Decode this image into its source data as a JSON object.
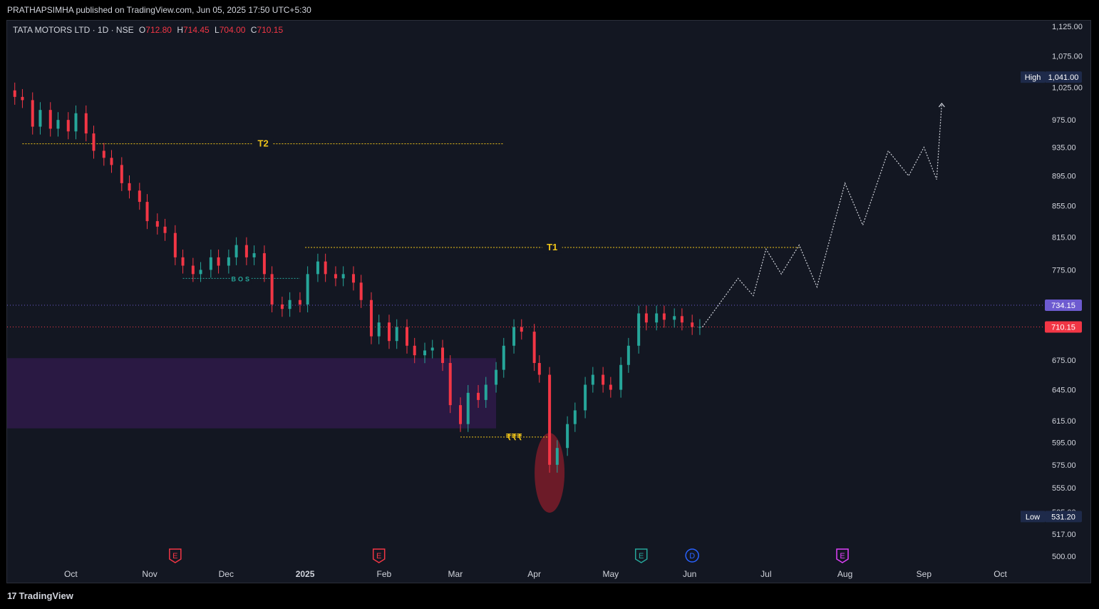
{
  "header": {
    "published": "PRATHAPSIMHA published on TradingView.com, Jun 05, 2025 17:50 UTC+5:30"
  },
  "symbol": {
    "name": "TATA MOTORS LTD · 1D · NSE",
    "open_key": "O",
    "open": "712.80",
    "high_key": "H",
    "high": "714.45",
    "low_key": "L",
    "low": "704.00",
    "close_key": "C",
    "close": "710.15"
  },
  "footer": {
    "logo_text": "TradingView"
  },
  "colors": {
    "bg": "#131722",
    "up": "#26a69a",
    "down": "#f23645",
    "target": "#f0c419",
    "zone": "#2e1a47",
    "ellipse": "#8b1e2b",
    "path": "#d1d4dc"
  },
  "chart_data": {
    "type": "candlestick",
    "y_scale": "log",
    "ylim": [
      495,
      1135
    ],
    "y_ticks": [
      "1,125.00",
      "1,075.00",
      "1,025.00",
      "975.00",
      "935.00",
      "895.00",
      "855.00",
      "815.00",
      "775.00",
      "675.00",
      "645.00",
      "615.00",
      "595.00",
      "575.00",
      "555.00",
      "535.00",
      "517.00",
      "500.00"
    ],
    "x_ticks": [
      {
        "label": "Oct",
        "date": "2024-10-01"
      },
      {
        "label": "Nov",
        "date": "2024-11-01"
      },
      {
        "label": "Dec",
        "date": "2024-12-01"
      },
      {
        "label": "2025",
        "date": "2025-01-01"
      },
      {
        "label": "Feb",
        "date": "2025-02-01"
      },
      {
        "label": "Mar",
        "date": "2025-03-01"
      },
      {
        "label": "Apr",
        "date": "2025-04-01"
      },
      {
        "label": "May",
        "date": "2025-05-01"
      },
      {
        "label": "Jun",
        "date": "2025-06-01"
      },
      {
        "label": "Jul",
        "date": "2025-07-01"
      },
      {
        "label": "Aug",
        "date": "2025-08-01"
      },
      {
        "label": "Sep",
        "date": "2025-09-01"
      },
      {
        "label": "Oct",
        "date": "2025-10-01"
      }
    ],
    "price_markers": [
      {
        "tag": "High",
        "value": "1,041.00",
        "price": 1041
      },
      {
        "tag": "",
        "value": "734.15",
        "price": 734.15
      },
      {
        "tag": "",
        "value": "710.15",
        "price": 710.15
      },
      {
        "tag": "Low",
        "value": "531.20",
        "price": 531.2
      }
    ],
    "candles": [
      {
        "d": "2024-09-09",
        "c": 1010
      },
      {
        "d": "2024-09-12",
        "c": 1005
      },
      {
        "d": "2024-09-16",
        "c": 965
      },
      {
        "d": "2024-09-19",
        "c": 990
      },
      {
        "d": "2024-09-23",
        "c": 962
      },
      {
        "d": "2024-09-26",
        "c": 975
      },
      {
        "d": "2024-09-30",
        "c": 958
      },
      {
        "d": "2024-10-03",
        "c": 985
      },
      {
        "d": "2024-10-07",
        "c": 955
      },
      {
        "d": "2024-10-10",
        "c": 930
      },
      {
        "d": "2024-10-14",
        "c": 920
      },
      {
        "d": "2024-10-17",
        "c": 910
      },
      {
        "d": "2024-10-21",
        "c": 885
      },
      {
        "d": "2024-10-24",
        "c": 875
      },
      {
        "d": "2024-10-28",
        "c": 860
      },
      {
        "d": "2024-10-31",
        "c": 835
      },
      {
        "d": "2024-11-04",
        "c": 828
      },
      {
        "d": "2024-11-07",
        "c": 820
      },
      {
        "d": "2024-11-11",
        "c": 790
      },
      {
        "d": "2024-11-14",
        "c": 780
      },
      {
        "d": "2024-11-18",
        "c": 770
      },
      {
        "d": "2024-11-21",
        "c": 775
      },
      {
        "d": "2024-11-25",
        "c": 790
      },
      {
        "d": "2024-11-28",
        "c": 780
      },
      {
        "d": "2024-12-02",
        "c": 790
      },
      {
        "d": "2024-12-05",
        "c": 805
      },
      {
        "d": "2024-12-09",
        "c": 790
      },
      {
        "d": "2024-12-12",
        "c": 795
      },
      {
        "d": "2024-12-16",
        "c": 770
      },
      {
        "d": "2024-12-19",
        "c": 735
      },
      {
        "d": "2024-12-23",
        "c": 730
      },
      {
        "d": "2024-12-26",
        "c": 740
      },
      {
        "d": "2024-12-30",
        "c": 735
      },
      {
        "d": "2025-01-02",
        "c": 770
      },
      {
        "d": "2025-01-06",
        "c": 785
      },
      {
        "d": "2025-01-09",
        "c": 770
      },
      {
        "d": "2025-01-13",
        "c": 765
      },
      {
        "d": "2025-01-16",
        "c": 770
      },
      {
        "d": "2025-01-20",
        "c": 760
      },
      {
        "d": "2025-01-23",
        "c": 740
      },
      {
        "d": "2025-01-27",
        "c": 700
      },
      {
        "d": "2025-01-30",
        "c": 715
      },
      {
        "d": "2025-02-03",
        "c": 695
      },
      {
        "d": "2025-02-06",
        "c": 710
      },
      {
        "d": "2025-02-10",
        "c": 690
      },
      {
        "d": "2025-02-13",
        "c": 680
      },
      {
        "d": "2025-02-17",
        "c": 685
      },
      {
        "d": "2025-02-20",
        "c": 688
      },
      {
        "d": "2025-02-24",
        "c": 672
      },
      {
        "d": "2025-02-27",
        "c": 630
      },
      {
        "d": "2025-03-03",
        "c": 612
      },
      {
        "d": "2025-03-06",
        "c": 642
      },
      {
        "d": "2025-03-10",
        "c": 635
      },
      {
        "d": "2025-03-13",
        "c": 650
      },
      {
        "d": "2025-03-17",
        "c": 665
      },
      {
        "d": "2025-03-20",
        "c": 690
      },
      {
        "d": "2025-03-24",
        "c": 710
      },
      {
        "d": "2025-03-27",
        "c": 705
      },
      {
        "d": "2025-04-01",
        "c": 672
      },
      {
        "d": "2025-04-03",
        "c": 660
      },
      {
        "d": "2025-04-07",
        "c": 575
      },
      {
        "d": "2025-04-10",
        "c": 590
      },
      {
        "d": "2025-04-14",
        "c": 612
      },
      {
        "d": "2025-04-17",
        "c": 625
      },
      {
        "d": "2025-04-21",
        "c": 650
      },
      {
        "d": "2025-04-24",
        "c": 660
      },
      {
        "d": "2025-04-28",
        "c": 650
      },
      {
        "d": "2025-05-01",
        "c": 645
      },
      {
        "d": "2025-05-05",
        "c": 670
      },
      {
        "d": "2025-05-08",
        "c": 690
      },
      {
        "d": "2025-05-12",
        "c": 725
      },
      {
        "d": "2025-05-15",
        "c": 715
      },
      {
        "d": "2025-05-19",
        "c": 725
      },
      {
        "d": "2025-05-22",
        "c": 718
      },
      {
        "d": "2025-05-26",
        "c": 722
      },
      {
        "d": "2025-05-29",
        "c": 715
      },
      {
        "d": "2025-06-02",
        "c": 710
      },
      {
        "d": "2025-06-05",
        "c": 710.15
      }
    ],
    "projection": [
      {
        "d": "2025-06-06",
        "p": 710
      },
      {
        "d": "2025-06-20",
        "p": 765
      },
      {
        "d": "2025-06-26",
        "p": 745
      },
      {
        "d": "2025-07-01",
        "p": 800
      },
      {
        "d": "2025-07-07",
        "p": 770
      },
      {
        "d": "2025-07-14",
        "p": 805
      },
      {
        "d": "2025-07-21",
        "p": 755
      },
      {
        "d": "2025-08-01",
        "p": 885
      },
      {
        "d": "2025-08-08",
        "p": 830
      },
      {
        "d": "2025-08-18",
        "p": 930
      },
      {
        "d": "2025-08-26",
        "p": 895
      },
      {
        "d": "2025-09-01",
        "p": 935
      },
      {
        "d": "2025-09-06",
        "p": 890
      },
      {
        "d": "2025-09-08",
        "p": 1000
      }
    ],
    "levels": [
      {
        "label": "T2",
        "price": 940,
        "from": "2024-09-12",
        "to": "2025-03-20"
      },
      {
        "label": "T1",
        "price": 802,
        "from": "2025-01-01",
        "to": "2025-07-14"
      },
      {
        "label": "BOS",
        "price": 765,
        "from": "2024-11-14",
        "to": "2024-12-30"
      }
    ],
    "liquidity_label": "₹₹₹",
    "event_markers": [
      {
        "letter": "E",
        "date": "2024-11-11",
        "kind": "earnings-red"
      },
      {
        "letter": "E",
        "date": "2025-01-30",
        "kind": "earnings-red"
      },
      {
        "letter": "E",
        "date": "2025-05-13",
        "kind": "earnings-green"
      },
      {
        "letter": "D",
        "date": "2025-06-02",
        "kind": "dividend"
      },
      {
        "letter": "E",
        "date": "2025-07-31",
        "kind": "earnings-purple"
      }
    ]
  }
}
